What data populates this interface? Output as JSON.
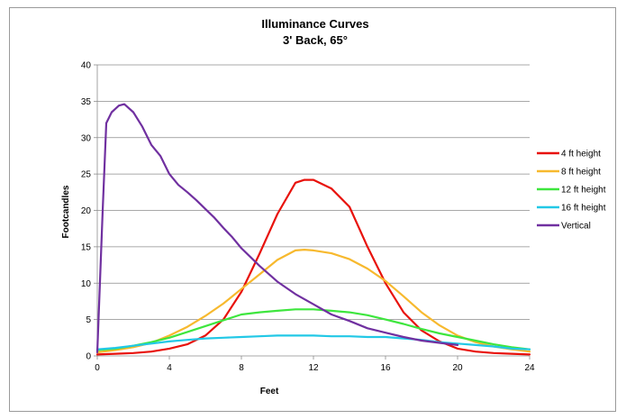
{
  "chart_data": {
    "type": "line",
    "title": "Illuminance Curves",
    "subtitle": "3' Back, 65°",
    "xlabel": "Feet",
    "ylabel": "Footcandles",
    "xlim": [
      0,
      24
    ],
    "ylim": [
      0,
      40
    ],
    "x_ticks": [
      0,
      4,
      8,
      12,
      16,
      20,
      24
    ],
    "y_ticks": [
      0,
      5,
      10,
      15,
      20,
      25,
      30,
      35,
      40
    ],
    "grid": "horizontal",
    "legend_position": "right",
    "series": [
      {
        "name": "4 ft height",
        "color": "#e8120c",
        "points": [
          [
            0,
            0.2
          ],
          [
            1,
            0.3
          ],
          [
            2,
            0.4
          ],
          [
            3,
            0.6
          ],
          [
            4,
            1.0
          ],
          [
            5,
            1.6
          ],
          [
            6,
            2.8
          ],
          [
            7,
            5.0
          ],
          [
            8,
            8.8
          ],
          [
            9,
            14.0
          ],
          [
            10,
            19.5
          ],
          [
            11,
            23.8
          ],
          [
            11.5,
            24.2
          ],
          [
            12,
            24.2
          ],
          [
            13,
            23.0
          ],
          [
            14,
            20.5
          ],
          [
            15,
            15.0
          ],
          [
            16,
            10.0
          ],
          [
            17,
            6.0
          ],
          [
            18,
            3.5
          ],
          [
            19,
            2.0
          ],
          [
            20,
            1.0
          ],
          [
            21,
            0.6
          ],
          [
            22,
            0.4
          ],
          [
            23,
            0.3
          ],
          [
            24,
            0.2
          ]
        ]
      },
      {
        "name": "8 ft height",
        "color": "#f7b92e",
        "points": [
          [
            0,
            0.5
          ],
          [
            1,
            0.8
          ],
          [
            2,
            1.2
          ],
          [
            3,
            1.8
          ],
          [
            4,
            2.8
          ],
          [
            5,
            4.0
          ],
          [
            6,
            5.5
          ],
          [
            7,
            7.2
          ],
          [
            8,
            9.2
          ],
          [
            9,
            11.2
          ],
          [
            10,
            13.2
          ],
          [
            11,
            14.5
          ],
          [
            11.5,
            14.6
          ],
          [
            12,
            14.5
          ],
          [
            13,
            14.1
          ],
          [
            14,
            13.3
          ],
          [
            15,
            12.0
          ],
          [
            16,
            10.3
          ],
          [
            17,
            8.2
          ],
          [
            18,
            6.0
          ],
          [
            19,
            4.2
          ],
          [
            20,
            2.8
          ],
          [
            21,
            1.9
          ],
          [
            22,
            1.3
          ],
          [
            23,
            0.9
          ],
          [
            24,
            0.6
          ]
        ]
      },
      {
        "name": "12 ft height",
        "color": "#3ee63e",
        "points": [
          [
            0,
            0.8
          ],
          [
            1,
            1.0
          ],
          [
            2,
            1.4
          ],
          [
            3,
            1.9
          ],
          [
            4,
            2.5
          ],
          [
            5,
            3.3
          ],
          [
            6,
            4.1
          ],
          [
            7,
            4.9
          ],
          [
            8,
            5.7
          ],
          [
            9,
            6.0
          ],
          [
            10,
            6.2
          ],
          [
            11,
            6.4
          ],
          [
            12,
            6.4
          ],
          [
            13,
            6.2
          ],
          [
            14,
            6.0
          ],
          [
            15,
            5.6
          ],
          [
            16,
            5.0
          ],
          [
            17,
            4.4
          ],
          [
            18,
            3.7
          ],
          [
            19,
            3.1
          ],
          [
            20,
            2.6
          ],
          [
            21,
            2.1
          ],
          [
            22,
            1.6
          ],
          [
            23,
            1.2
          ],
          [
            24,
            0.9
          ]
        ]
      },
      {
        "name": "16 ft height",
        "color": "#22c8e6",
        "points": [
          [
            0,
            0.9
          ],
          [
            1,
            1.1
          ],
          [
            2,
            1.4
          ],
          [
            3,
            1.7
          ],
          [
            4,
            2.0
          ],
          [
            5,
            2.2
          ],
          [
            6,
            2.4
          ],
          [
            7,
            2.5
          ],
          [
            8,
            2.6
          ],
          [
            9,
            2.7
          ],
          [
            10,
            2.8
          ],
          [
            11,
            2.8
          ],
          [
            12,
            2.8
          ],
          [
            13,
            2.7
          ],
          [
            14,
            2.7
          ],
          [
            15,
            2.6
          ],
          [
            16,
            2.6
          ],
          [
            17,
            2.4
          ],
          [
            18,
            2.2
          ],
          [
            19,
            1.9
          ],
          [
            20,
            1.7
          ],
          [
            21,
            1.5
          ],
          [
            22,
            1.3
          ],
          [
            23,
            1.0
          ],
          [
            24,
            0.9
          ]
        ]
      },
      {
        "name": "Vertical",
        "color": "#7030a0",
        "points": [
          [
            0,
            0.5
          ],
          [
            0.3,
            20
          ],
          [
            0.5,
            32
          ],
          [
            0.8,
            33.5
          ],
          [
            1.2,
            34.4
          ],
          [
            1.5,
            34.6
          ],
          [
            2,
            33.5
          ],
          [
            2.5,
            31.5
          ],
          [
            3,
            29
          ],
          [
            3.5,
            27.5
          ],
          [
            4,
            25
          ],
          [
            4.5,
            23.5
          ],
          [
            5,
            22.5
          ],
          [
            5.5,
            21.4
          ],
          [
            6,
            20.2
          ],
          [
            6.5,
            19
          ],
          [
            7,
            17.6
          ],
          [
            7.5,
            16.3
          ],
          [
            8,
            14.8
          ],
          [
            8.5,
            13.6
          ],
          [
            9,
            12.4
          ],
          [
            10,
            10.2
          ],
          [
            11,
            8.5
          ],
          [
            12,
            7.1
          ],
          [
            13,
            5.7
          ],
          [
            14,
            4.8
          ],
          [
            15,
            3.8
          ],
          [
            16,
            3.2
          ],
          [
            17,
            2.6
          ],
          [
            18,
            2.1
          ],
          [
            19,
            1.8
          ],
          [
            20,
            1.5
          ]
        ]
      }
    ]
  }
}
